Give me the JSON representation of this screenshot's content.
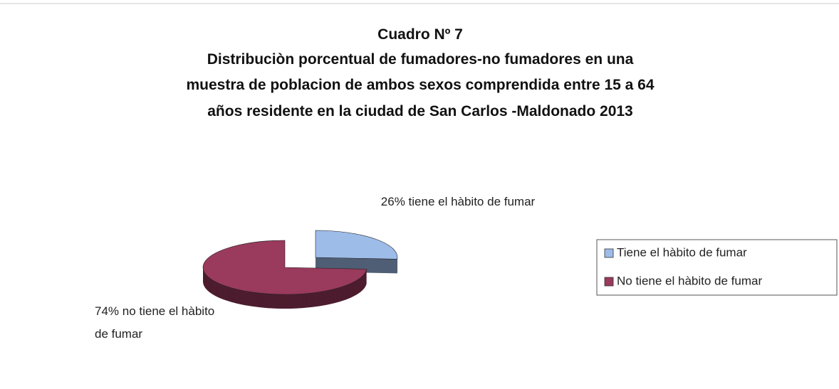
{
  "chart_data": {
    "type": "pie",
    "title": "Cuadro Nº 7",
    "subtitle": [
      "Distribuciòn porcentual de   fumadores-no fumadores en una",
      "muestra de poblacion  de ambos sexos comprendida entre 15 a 64",
      "años residente en la ciudad de San Carlos -Maldonado 2013"
    ],
    "categories": [
      "Tiene el hàbito de fumar",
      "No tiene el hàbito de fumar"
    ],
    "values": [
      26,
      74
    ],
    "value_labels": [
      "26% tiene el hàbito de fumar",
      "74% no tiene el hàbito de fumar"
    ],
    "colors": [
      "#9dbce8",
      "#9a3a5c"
    ],
    "legend": "right"
  }
}
